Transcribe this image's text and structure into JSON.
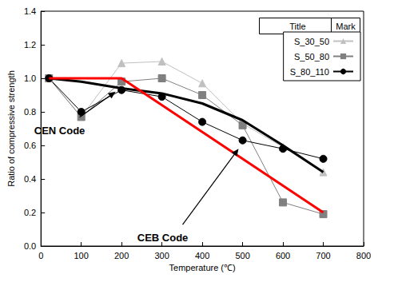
{
  "chart_data": {
    "type": "line",
    "x_label": "Temperature (℃)",
    "y_label": "Ratio of compressive strength",
    "xlim": [
      0,
      800
    ],
    "xticks": [
      0,
      100,
      200,
      300,
      400,
      500,
      600,
      700,
      800
    ],
    "ylim": [
      0,
      1.4
    ],
    "yticks": [
      {
        "value": 0,
        "label": "0.0"
      },
      0.2,
      0.4,
      0.6,
      0.8,
      {
        "value": 1,
        "label": "1.0"
      },
      1.2,
      1.4
    ],
    "grid": false,
    "legend": "top-right",
    "legend_header": [
      "Title",
      "Mark"
    ],
    "series": [
      {
        "name": "S_30_50",
        "color": "#c0c0c0",
        "marker": "triangle",
        "line_style": "thin",
        "x": [
          20,
          100,
          200,
          300,
          400,
          500,
          600,
          700
        ],
        "values": [
          1.0,
          0.77,
          1.09,
          1.1,
          0.97,
          0.73,
          0.59,
          0.44
        ]
      },
      {
        "name": "S_50_80",
        "color": "#808080",
        "marker": "square",
        "line_style": "thin",
        "x": [
          20,
          100,
          200,
          300,
          400,
          500,
          600,
          700
        ],
        "values": [
          1.0,
          0.77,
          0.98,
          1.0,
          0.9,
          0.72,
          0.26,
          0.19
        ]
      },
      {
        "name": "S_80_110",
        "color": "#000000",
        "marker": "circle",
        "line_style": "thin",
        "x": [
          20,
          100,
          200,
          300,
          400,
          500,
          600,
          700
        ],
        "values": [
          1.0,
          0.8,
          0.93,
          0.89,
          0.74,
          0.63,
          0.58,
          0.52
        ]
      },
      {
        "name": "CEN Code",
        "color": "#000000",
        "marker": "none",
        "line_style": "thick",
        "x": [
          20,
          100,
          200,
          300,
          400,
          500,
          600,
          700
        ],
        "values": [
          1.0,
          0.98,
          0.94,
          0.91,
          0.85,
          0.75,
          0.6,
          0.44
        ]
      },
      {
        "name": "CEB Code",
        "color": "#ff0000",
        "marker": "none",
        "line_style": "thick",
        "x": [
          20,
          200,
          700
        ],
        "values": [
          1.0,
          1.0,
          0.2
        ]
      }
    ],
    "annotations": [
      {
        "text": "CEN Code",
        "x": 185,
        "y": 0.92
      },
      {
        "text": "CEB Code",
        "x": 490,
        "y": 0.58
      }
    ]
  }
}
